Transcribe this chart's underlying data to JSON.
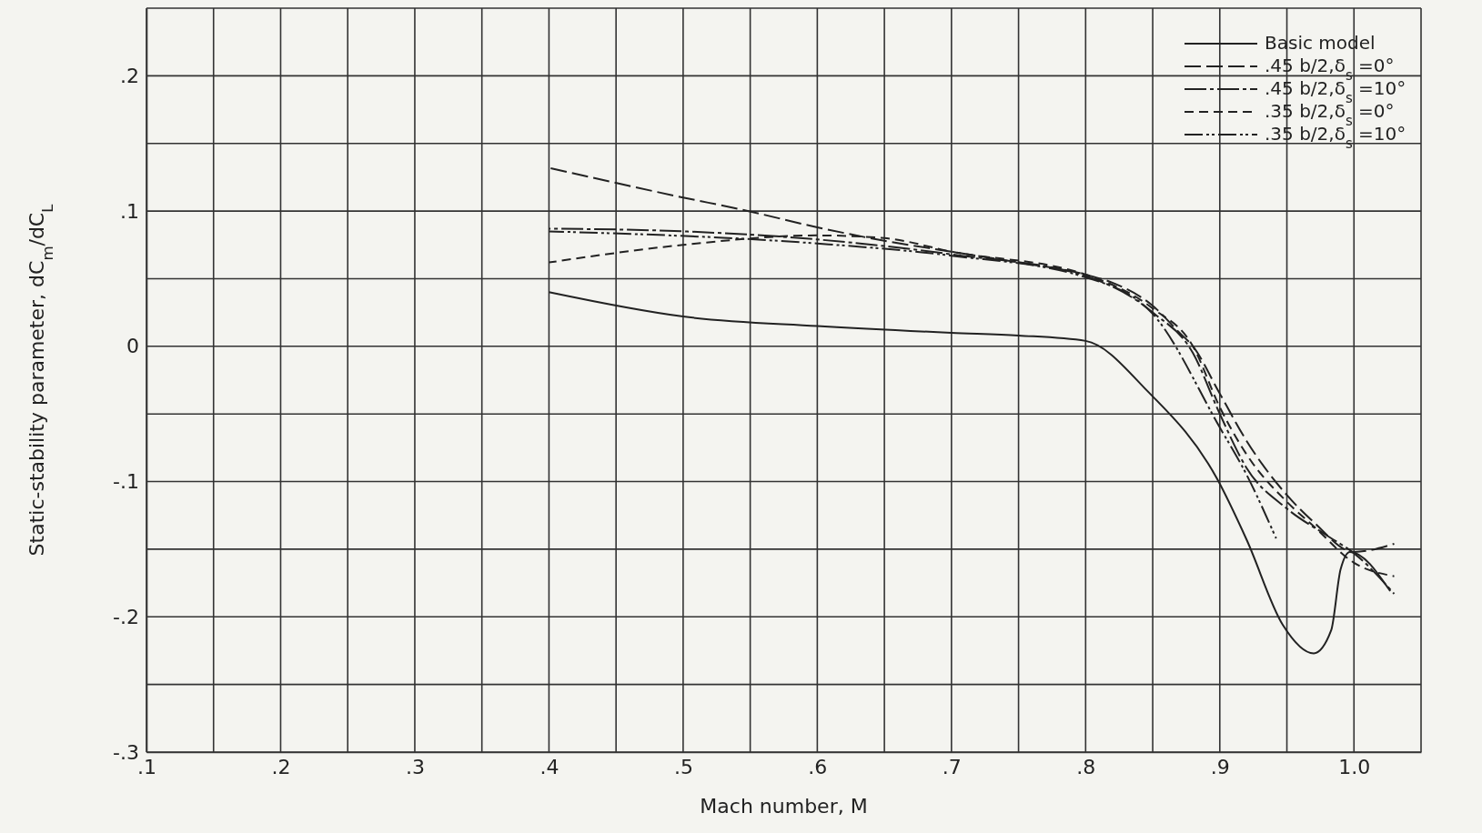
{
  "chart_data": {
    "type": "line",
    "xlabel": "Mach number, M",
    "ylabel": "Static-stability parameter, dC$_{m}$/dC$_{L}$",
    "xlim": [
      0.1,
      1.05
    ],
    "ylim": [
      -0.3,
      0.25
    ],
    "xticks": [
      {
        "value": 0.1,
        "label": ".1"
      },
      {
        "value": 0.15,
        "label": null
      },
      {
        "value": 0.2,
        "label": ".2"
      },
      {
        "value": 0.25,
        "label": null
      },
      {
        "value": 0.3,
        "label": ".3"
      },
      {
        "value": 0.35,
        "label": null
      },
      {
        "value": 0.4,
        "label": ".4"
      },
      {
        "value": 0.45,
        "label": null
      },
      {
        "value": 0.5,
        "label": ".5"
      },
      {
        "value": 0.55,
        "label": null
      },
      {
        "value": 0.6,
        "label": ".6"
      },
      {
        "value": 0.65,
        "label": null
      },
      {
        "value": 0.7,
        "label": ".7"
      },
      {
        "value": 0.75,
        "label": null
      },
      {
        "value": 0.8,
        "label": ".8"
      },
      {
        "value": 0.85,
        "label": null
      },
      {
        "value": 0.9,
        "label": ".9"
      },
      {
        "value": 0.95,
        "label": null
      },
      {
        "value": 1.0,
        "label": "1.0"
      },
      {
        "value": 1.05,
        "label": null
      }
    ],
    "yticks": [
      {
        "value": -0.3,
        "label": "-.3"
      },
      {
        "value": -0.25,
        "label": null
      },
      {
        "value": -0.2,
        "label": "-.2"
      },
      {
        "value": -0.15,
        "label": null
      },
      {
        "value": -0.1,
        "label": "-.1"
      },
      {
        "value": -0.05,
        "label": null
      },
      {
        "value": 0,
        "label": "0"
      },
      {
        "value": 0.05,
        "label": null
      },
      {
        "value": 0.1,
        "label": ".1"
      },
      {
        "value": 0.15,
        "label": null
      },
      {
        "value": 0.2,
        "label": ".2"
      },
      {
        "value": 0.25,
        "label": null
      }
    ],
    "grid": true,
    "legend": "top right",
    "marker": "none",
    "series": [
      {
        "name": "Basic model",
        "color": "#222222",
        "line_style": "solid",
        "x": [
          0.4,
          0.5,
          0.6,
          0.7,
          0.75,
          0.8,
          0.846,
          0.898,
          0.92,
          0.947,
          0.97,
          0.983,
          0.99,
          0.997,
          1.027
        ],
        "values": [
          0.04,
          0.022,
          0.015,
          0.01,
          0.008,
          0.004,
          -0.033,
          -0.098,
          -0.143,
          -0.206,
          -0.227,
          -0.21,
          -0.165,
          -0.152,
          -0.181
        ]
      },
      {
        "name": ".45 b/2,δ$_{s}$ =0°",
        "color": "#222222",
        "line_style": "dashed",
        "x": [
          0.4,
          0.5,
          0.544,
          0.6,
          0.65,
          0.7,
          0.75,
          0.8,
          0.82,
          0.85,
          0.87,
          0.88,
          0.9,
          0.92,
          0.95,
          0.97,
          1.0,
          1.03
        ],
        "values": [
          0.132,
          0.11,
          0.101,
          0.088,
          0.078,
          0.07,
          0.062,
          0.053,
          0.047,
          0.03,
          0.01,
          0,
          -0.035,
          -0.07,
          -0.11,
          -0.13,
          -0.152,
          -0.146
        ]
      },
      {
        "name": ".45 b/2,δ$_{s}$ =10°",
        "color": "#222222",
        "line_style": "dashed",
        "x": [
          0.4,
          0.5,
          0.6,
          0.7,
          0.8,
          0.85,
          0.88,
          0.9,
          0.92,
          0.95,
          0.98,
          1.0,
          1.03
        ],
        "values": [
          0.087,
          0.085,
          0.079,
          0.068,
          0.052,
          0.025,
          -0.005,
          -0.05,
          -0.09,
          -0.12,
          -0.14,
          -0.153,
          -0.183
        ]
      },
      {
        "name": ".35 b/2,δ$_{s}$ =0°",
        "color": "#222222",
        "line_style": "dashed",
        "x": [
          0.4,
          0.5,
          0.6,
          0.65,
          0.7,
          0.8,
          0.85,
          0.88,
          0.9,
          0.92,
          0.95,
          0.97,
          1.0,
          1.03
        ],
        "values": [
          0.062,
          0.075,
          0.082,
          0.08,
          0.07,
          0.053,
          0.028,
          0,
          -0.045,
          -0.08,
          -0.115,
          -0.133,
          -0.16,
          -0.17
        ]
      },
      {
        "name": ".35 b/2,δ$_{s}$ =10°",
        "color": "#222222",
        "line_style": "dotted",
        "x": [
          0.4,
          0.6,
          0.7,
          0.8,
          0.85,
          0.9,
          0.92,
          0.942
        ],
        "values": [
          0.085,
          0.076,
          0.067,
          0.051,
          0.024,
          -0.06,
          -0.095,
          -0.142
        ]
      }
    ]
  }
}
